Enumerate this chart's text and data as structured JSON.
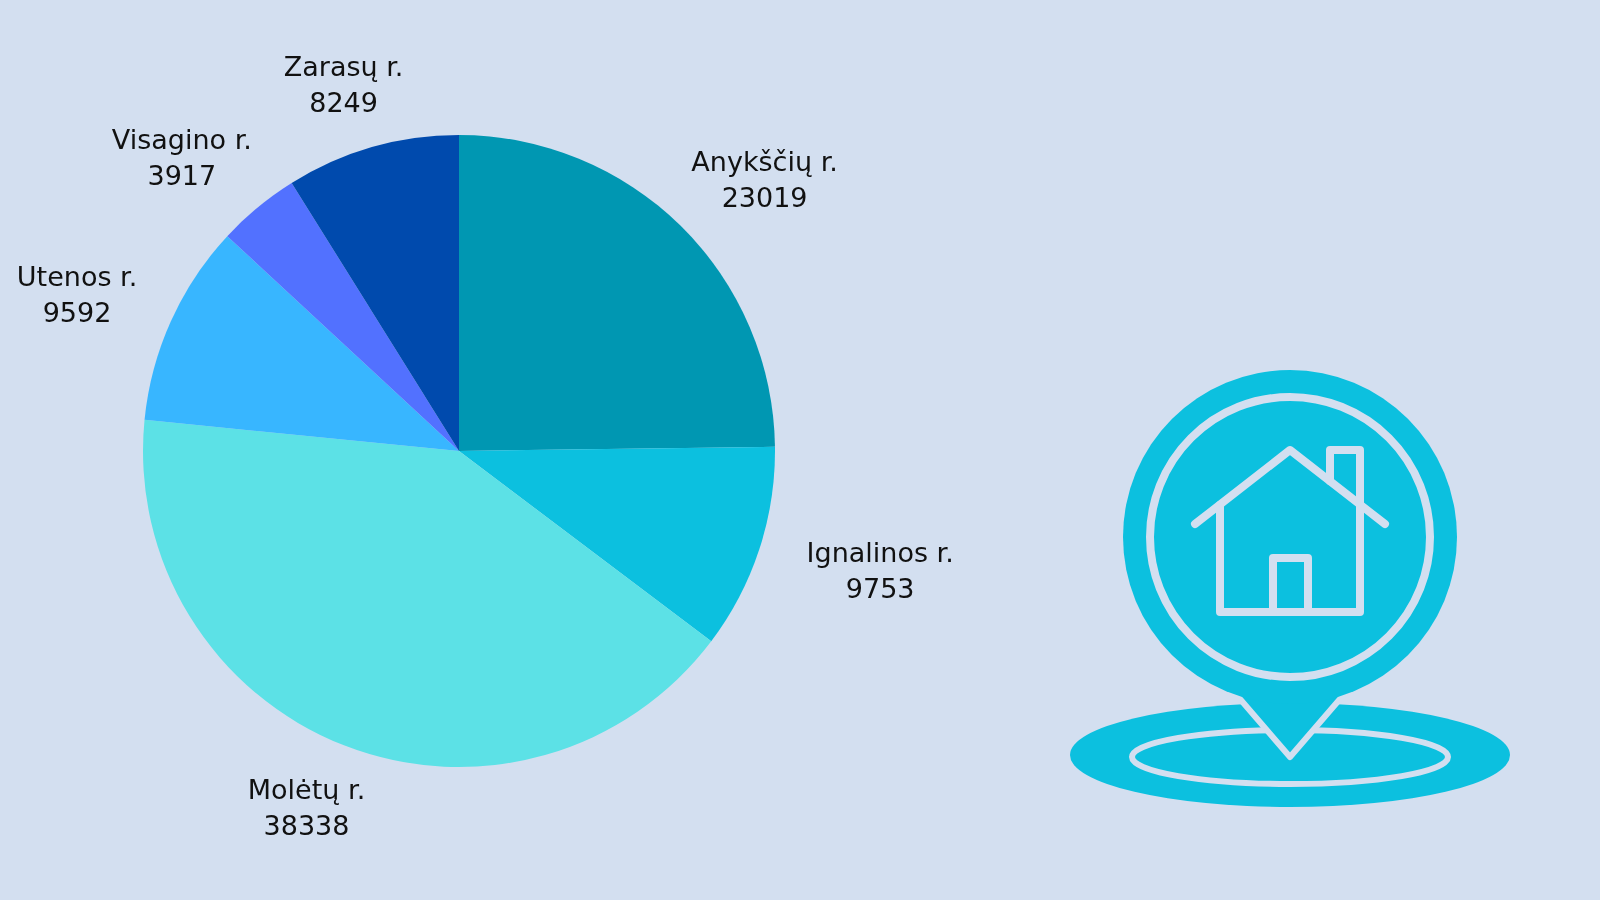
{
  "chart_data": {
    "type": "pie",
    "categories": [
      "Anykščių r.",
      "Ignalinos r.",
      "Molėtų r.",
      "Utenos r.",
      "Visagino r.",
      "Zarasų r."
    ],
    "values": [
      23019,
      9753,
      38338,
      9592,
      3917,
      8249
    ],
    "colors": [
      "#0097b2",
      "#0cc0df",
      "#5ce1e6",
      "#38b6ff",
      "#5271ff",
      "#004aad"
    ],
    "data_labels": true
  }
}
